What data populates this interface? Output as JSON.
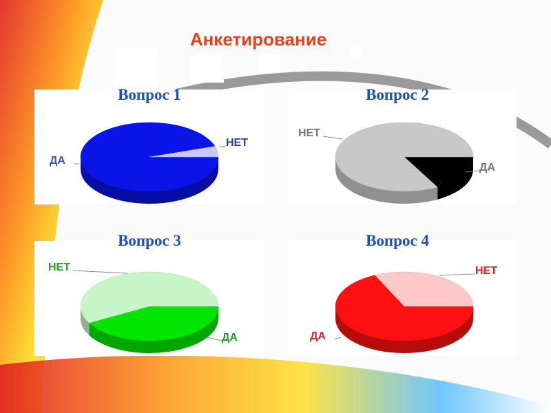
{
  "title": "Анкетирование",
  "chart_data": [
    {
      "type": "pie",
      "title": "Вопрос 1",
      "categories": [
        "ДА",
        "НЕТ"
      ],
      "values": [
        95,
        5
      ],
      "colors": [
        "#0a14e6",
        "#c8c8ff"
      ]
    },
    {
      "type": "pie",
      "title": "Вопрос 2",
      "categories": [
        "ДА",
        "НЕТ"
      ],
      "values": [
        17,
        83
      ],
      "colors": [
        "#000000",
        "#c8c8c8"
      ]
    },
    {
      "type": "pie",
      "title": "Вопрос 3",
      "categories": [
        "ДА",
        "НЕТ"
      ],
      "values": [
        42,
        58
      ],
      "colors": [
        "#00e600",
        "#c8f5c8"
      ]
    },
    {
      "type": "pie",
      "title": "Вопрос 4",
      "categories": [
        "ДА",
        "НЕТ"
      ],
      "values": [
        68,
        32
      ],
      "colors": [
        "#ff1010",
        "#ffc8c8"
      ]
    }
  ]
}
